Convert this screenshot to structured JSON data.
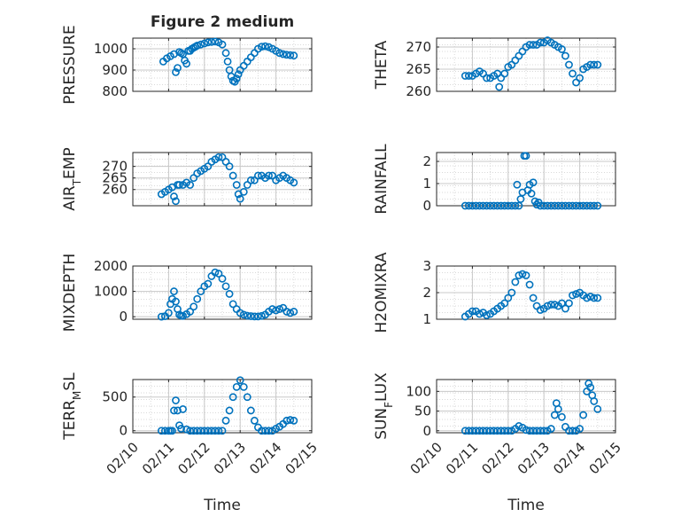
{
  "figure": {
    "title": "Figure 2 medium",
    "marker_color": "#0072BD",
    "axis_color": "#262626",
    "grid_color": "#d9d9d9"
  },
  "x_axis": {
    "label": "Time",
    "ticks": [
      "02/10",
      "02/11",
      "02/12",
      "02/13",
      "02/14",
      "02/15"
    ]
  },
  "chart_data": [
    {
      "type": "scatter",
      "title": "Figure 2 medium",
      "ylabel": "PRESSURE",
      "ylabel_parts": [
        [
          "PRESSURE",
          false
        ]
      ],
      "xlim": [
        0,
        5
      ],
      "ylim": [
        800,
        1050
      ],
      "yticks": [
        800,
        900,
        1000
      ],
      "grid": true,
      "x": [
        0.85,
        0.95,
        1.05,
        1.15,
        1.2,
        1.25,
        1.3,
        1.35,
        1.4,
        1.45,
        1.5,
        1.55,
        1.6,
        1.65,
        1.7,
        1.75,
        1.8,
        1.9,
        2.0,
        2.1,
        2.2,
        2.3,
        2.4,
        2.5,
        2.6,
        2.65,
        2.7,
        2.75,
        2.8,
        2.85,
        2.9,
        2.95,
        3.0,
        3.1,
        3.2,
        3.3,
        3.4,
        3.5,
        3.6,
        3.7,
        3.8,
        3.9,
        4.0,
        4.1,
        4.2,
        4.3,
        4.4,
        4.5
      ],
      "y": [
        940,
        955,
        965,
        975,
        890,
        910,
        985,
        980,
        975,
        945,
        930,
        990,
        990,
        1000,
        1005,
        1010,
        1015,
        1020,
        1025,
        1030,
        1032,
        1034,
        1030,
        1020,
        980,
        940,
        900,
        870,
        850,
        845,
        860,
        880,
        900,
        920,
        940,
        960,
        980,
        1000,
        1010,
        1012,
        1008,
        1000,
        990,
        980,
        975,
        972,
        970,
        968
      ]
    },
    {
      "type": "scatter",
      "ylabel": "THETA",
      "ylabel_parts": [
        [
          "THETA",
          false
        ]
      ],
      "xlim": [
        0,
        5
      ],
      "ylim": [
        260,
        272
      ],
      "yticks": [
        260,
        265,
        270
      ],
      "grid": true,
      "x": [
        0.8,
        0.9,
        1.0,
        1.1,
        1.2,
        1.3,
        1.4,
        1.5,
        1.6,
        1.7,
        1.75,
        1.8,
        1.9,
        2.0,
        2.1,
        2.2,
        2.3,
        2.4,
        2.5,
        2.6,
        2.7,
        2.8,
        2.9,
        3.0,
        3.1,
        3.2,
        3.3,
        3.4,
        3.5,
        3.6,
        3.7,
        3.8,
        3.9,
        4.0,
        4.1,
        4.2,
        4.3,
        4.4,
        4.5
      ],
      "y": [
        263.5,
        263.5,
        263.5,
        264,
        264.5,
        264,
        263,
        263,
        263.5,
        264,
        261,
        263,
        264,
        265.5,
        266,
        267,
        268,
        269,
        270,
        270.5,
        270.5,
        270.5,
        271,
        271,
        271.5,
        271,
        270.5,
        270,
        269.5,
        268,
        266,
        264,
        262,
        263,
        265,
        265.5,
        266,
        266,
        266
      ]
    },
    {
      "type": "scatter",
      "ylabel": "AIR_TEMP",
      "ylabel_parts": [
        [
          "AIR",
          false
        ],
        [
          "T",
          true
        ],
        [
          "EMP",
          false
        ]
      ],
      "xlim": [
        0,
        5
      ],
      "ylim": [
        253,
        276
      ],
      "yticks": [
        260,
        265,
        270
      ],
      "grid": true,
      "x": [
        0.8,
        0.9,
        1.0,
        1.1,
        1.15,
        1.2,
        1.25,
        1.3,
        1.4,
        1.5,
        1.6,
        1.7,
        1.8,
        1.9,
        2.0,
        2.1,
        2.2,
        2.3,
        2.4,
        2.5,
        2.6,
        2.7,
        2.8,
        2.9,
        2.95,
        3.0,
        3.1,
        3.2,
        3.3,
        3.4,
        3.5,
        3.6,
        3.7,
        3.8,
        3.9,
        4.0,
        4.1,
        4.2,
        4.3,
        4.4,
        4.5
      ],
      "y": [
        258,
        259,
        260,
        261,
        257,
        255,
        262,
        262,
        262,
        263,
        262,
        265,
        267,
        268,
        269,
        270,
        272,
        273,
        274,
        274,
        272,
        270,
        266,
        262,
        258,
        256,
        259,
        262,
        264,
        264,
        266,
        266,
        265,
        266,
        266,
        264,
        265,
        266,
        265,
        264,
        263
      ]
    },
    {
      "type": "scatter",
      "ylabel": "RAINFALL",
      "ylabel_parts": [
        [
          "RAINFALL",
          false
        ]
      ],
      "xlim": [
        0,
        5
      ],
      "ylim": [
        0,
        2.4
      ],
      "yticks": [
        0,
        1,
        2
      ],
      "grid": true,
      "x": [
        0.8,
        0.9,
        1.0,
        1.1,
        1.2,
        1.3,
        1.4,
        1.5,
        1.6,
        1.7,
        1.8,
        1.9,
        2.0,
        2.1,
        2.2,
        2.25,
        2.3,
        2.35,
        2.4,
        2.45,
        2.5,
        2.55,
        2.6,
        2.65,
        2.7,
        2.75,
        2.8,
        2.85,
        2.9,
        3.0,
        3.1,
        3.2,
        3.3,
        3.4,
        3.5,
        3.6,
        3.7,
        3.8,
        3.9,
        4.0,
        4.1,
        4.2,
        4.3,
        4.4,
        4.5
      ],
      "y": [
        0,
        0,
        0,
        0,
        0,
        0,
        0,
        0,
        0,
        0,
        0,
        0,
        0,
        0,
        0,
        0.95,
        0,
        0.3,
        0.6,
        2.25,
        2.25,
        0.7,
        0.95,
        0.55,
        1.05,
        0.2,
        0.05,
        0.15,
        0,
        0,
        0,
        0,
        0,
        0,
        0,
        0,
        0,
        0,
        0,
        0,
        0,
        0,
        0,
        0,
        0
      ]
    },
    {
      "type": "scatter",
      "ylabel": "MIXDEPTH",
      "ylabel_parts": [
        [
          "MIXDEPTH",
          false
        ]
      ],
      "xlim": [
        0,
        5
      ],
      "ylim": [
        -100,
        2000
      ],
      "yticks": [
        0,
        1000,
        2000
      ],
      "grid": true,
      "x": [
        0.8,
        0.9,
        1.0,
        1.05,
        1.1,
        1.15,
        1.2,
        1.25,
        1.3,
        1.35,
        1.4,
        1.5,
        1.6,
        1.7,
        1.8,
        1.9,
        2.0,
        2.1,
        2.2,
        2.3,
        2.4,
        2.5,
        2.6,
        2.7,
        2.8,
        2.9,
        3.0,
        3.1,
        3.2,
        3.3,
        3.4,
        3.5,
        3.6,
        3.7,
        3.8,
        3.9,
        4.0,
        4.1,
        4.2,
        4.3,
        4.4,
        4.5
      ],
      "y": [
        0,
        20,
        150,
        500,
        700,
        1000,
        600,
        300,
        80,
        40,
        30,
        100,
        200,
        400,
        700,
        1000,
        1200,
        1300,
        1600,
        1750,
        1700,
        1500,
        1200,
        900,
        500,
        300,
        150,
        80,
        40,
        20,
        10,
        10,
        30,
        80,
        200,
        300,
        250,
        300,
        350,
        200,
        150,
        200
      ]
    },
    {
      "type": "scatter",
      "ylabel": "H2OMIXRA",
      "ylabel_parts": [
        [
          "H2OMIXRA",
          false
        ]
      ],
      "xlim": [
        0,
        5
      ],
      "ylim": [
        1,
        3
      ],
      "yticks": [
        1,
        2,
        3
      ],
      "grid": true,
      "x": [
        0.8,
        0.9,
        1.0,
        1.1,
        1.2,
        1.3,
        1.4,
        1.5,
        1.6,
        1.7,
        1.8,
        1.9,
        2.0,
        2.1,
        2.2,
        2.3,
        2.4,
        2.5,
        2.6,
        2.7,
        2.8,
        2.9,
        3.0,
        3.1,
        3.2,
        3.3,
        3.4,
        3.5,
        3.6,
        3.7,
        3.8,
        3.9,
        4.0,
        4.1,
        4.2,
        4.3,
        4.4,
        4.5
      ],
      "y": [
        1.1,
        1.2,
        1.3,
        1.3,
        1.2,
        1.25,
        1.15,
        1.2,
        1.3,
        1.4,
        1.5,
        1.6,
        1.8,
        2.0,
        2.4,
        2.65,
        2.7,
        2.65,
        2.3,
        1.8,
        1.5,
        1.35,
        1.4,
        1.5,
        1.55,
        1.55,
        1.5,
        1.6,
        1.4,
        1.6,
        1.9,
        1.95,
        2.0,
        1.9,
        1.8,
        1.85,
        1.8,
        1.8
      ]
    },
    {
      "type": "scatter",
      "ylabel": "TERR_MSL",
      "ylabel_parts": [
        [
          "TERR",
          false
        ],
        [
          "M",
          true
        ],
        [
          "SL",
          false
        ]
      ],
      "xlim": [
        0,
        5
      ],
      "ylim": [
        -30,
        760
      ],
      "yticks": [
        0,
        500
      ],
      "grid": true,
      "x": [
        0.8,
        0.9,
        1.0,
        1.05,
        1.1,
        1.15,
        1.2,
        1.25,
        1.3,
        1.35,
        1.4,
        1.5,
        1.6,
        1.7,
        1.8,
        1.9,
        2.0,
        2.1,
        2.2,
        2.3,
        2.4,
        2.5,
        2.6,
        2.7,
        2.8,
        2.9,
        3.0,
        3.1,
        3.2,
        3.3,
        3.4,
        3.5,
        3.6,
        3.7,
        3.8,
        3.9,
        4.0,
        4.1,
        4.2,
        4.3,
        4.4,
        4.5
      ],
      "y": [
        0,
        0,
        0,
        0,
        0,
        300,
        450,
        300,
        80,
        30,
        320,
        20,
        0,
        0,
        0,
        0,
        0,
        0,
        0,
        0,
        0,
        0,
        150,
        300,
        500,
        650,
        750,
        650,
        500,
        300,
        150,
        50,
        0,
        0,
        0,
        0,
        30,
        60,
        100,
        150,
        160,
        150
      ]
    },
    {
      "type": "scatter",
      "ylabel": "SUN_FLUX",
      "ylabel_parts": [
        [
          "SUN",
          false
        ],
        [
          "F",
          true
        ],
        [
          "LUX",
          false
        ]
      ],
      "xlim": [
        0,
        5
      ],
      "ylim": [
        -5,
        130
      ],
      "yticks": [
        0,
        50,
        100
      ],
      "grid": true,
      "x": [
        0.8,
        0.9,
        1.0,
        1.1,
        1.2,
        1.3,
        1.4,
        1.5,
        1.6,
        1.7,
        1.8,
        1.9,
        2.0,
        2.1,
        2.2,
        2.3,
        2.4,
        2.5,
        2.6,
        2.7,
        2.8,
        2.9,
        3.0,
        3.1,
        3.2,
        3.3,
        3.35,
        3.4,
        3.5,
        3.6,
        3.7,
        3.8,
        3.9,
        4.0,
        4.1,
        4.2,
        4.25,
        4.3,
        4.35,
        4.4,
        4.5
      ],
      "y": [
        0,
        0,
        0,
        0,
        0,
        0,
        0,
        0,
        0,
        0,
        0,
        0,
        0,
        0,
        5,
        12,
        8,
        2,
        0,
        0,
        0,
        0,
        0,
        0,
        5,
        40,
        70,
        55,
        35,
        10,
        0,
        0,
        0,
        5,
        40,
        100,
        120,
        110,
        90,
        75,
        55
      ]
    }
  ]
}
